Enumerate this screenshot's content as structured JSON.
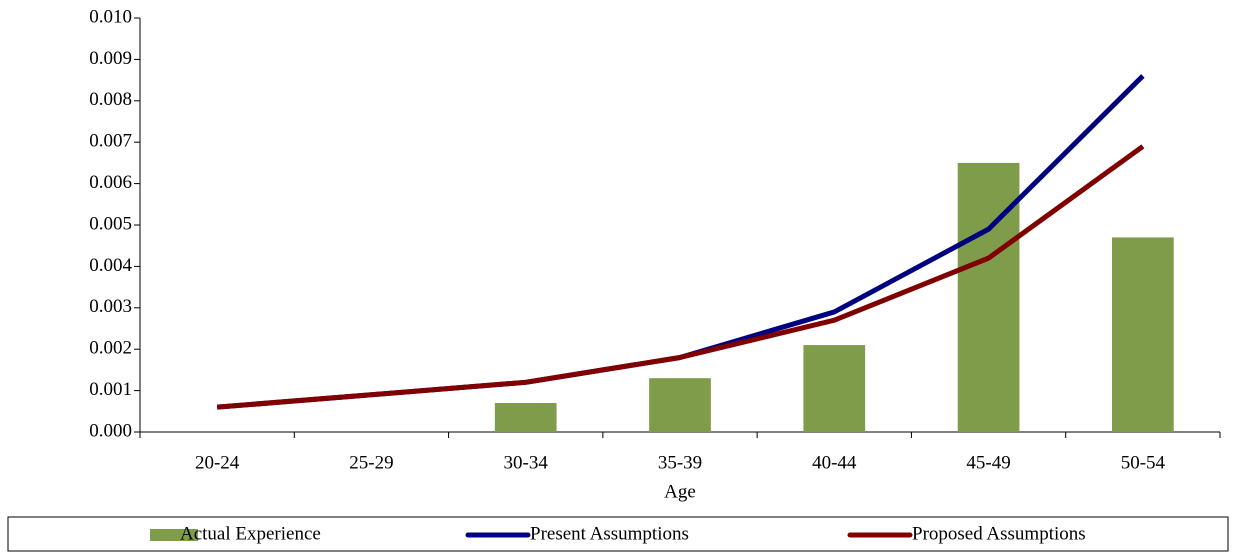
{
  "chart_data": {
    "type": "combo",
    "x_label": "Age",
    "categories": [
      "20-24",
      "25-29",
      "30-34",
      "35-39",
      "40-44",
      "45-49",
      "50-54"
    ],
    "series": [
      {
        "name": "Actual Experience",
        "type": "bar",
        "color": "#7f9c4a",
        "values": [
          null,
          null,
          0.0007,
          0.0013,
          0.0021,
          0.0065,
          0.0047
        ]
      },
      {
        "name": "Present Assumptions",
        "type": "line",
        "color": "#000080",
        "values": [
          0.0006,
          0.0009,
          0.0012,
          0.0018,
          0.0029,
          0.0049,
          0.0086
        ]
      },
      {
        "name": "Proposed Assumptions",
        "type": "line",
        "color": "#800000",
        "values": [
          0.0006,
          0.0009,
          0.0012,
          0.0018,
          0.0027,
          0.0042,
          0.0069
        ]
      }
    ],
    "ylim": [
      0,
      0.01
    ],
    "yticks": [
      {
        "value": 0,
        "label": "0.000"
      },
      {
        "value": 0.001,
        "label": "0.001"
      },
      {
        "value": 0.002,
        "label": "0.002"
      },
      {
        "value": 0.003,
        "label": "0.003"
      },
      {
        "value": 0.004,
        "label": "0.004"
      },
      {
        "value": 0.005,
        "label": "0.005"
      },
      {
        "value": 0.006,
        "label": "0.006"
      },
      {
        "value": 0.007,
        "label": "0.007"
      },
      {
        "value": 0.008,
        "label": "0.008"
      },
      {
        "value": 0.009,
        "label": "0.009"
      },
      {
        "value": 0.01,
        "label": "0.010"
      }
    ],
    "grid": false,
    "legend": "bottom"
  }
}
